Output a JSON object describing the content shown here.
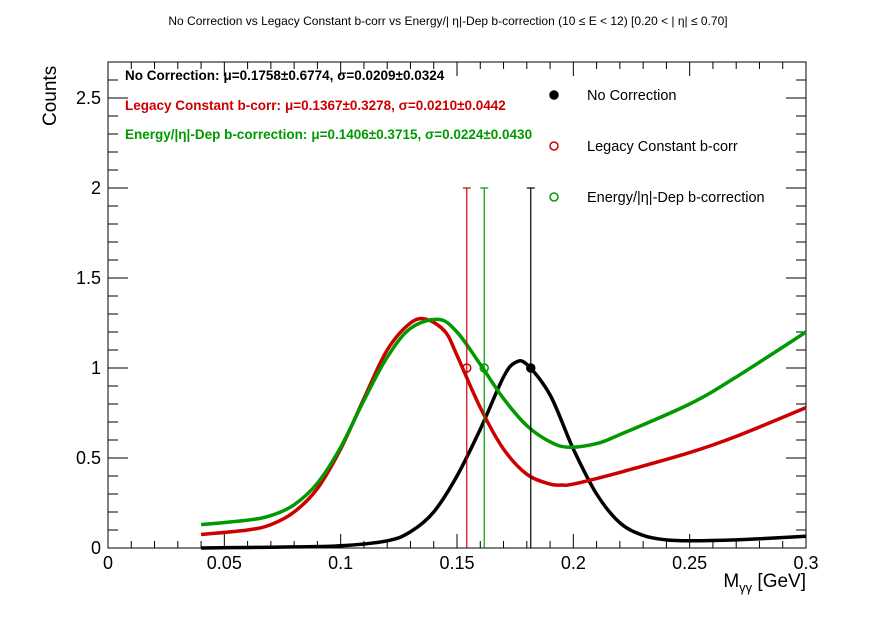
{
  "chart_data": {
    "type": "line",
    "title": "No Correction vs Legacy Constant b-corr vs Energy/|      η|-Dep b-correction   (10    ≤ E < 12)   [0.20 <  |   η| ≤ 0.70]",
    "xlabel": "M_γγ [GeV]",
    "xlabel_main": "M",
    "xlabel_sub": "γγ",
    "xlabel_unit": " [GeV]",
    "ylabel": "Counts",
    "xlim": [
      0,
      0.3
    ],
    "ylim": [
      0,
      2.7
    ],
    "x_ticks": [
      {
        "value": 0,
        "label": "0"
      },
      {
        "value": 0.05,
        "label": "0.05"
      },
      {
        "value": 0.1,
        "label": "0.1"
      },
      {
        "value": 0.15,
        "label": "0.15"
      },
      {
        "value": 0.2,
        "label": "0.2"
      },
      {
        "value": 0.25,
        "label": "0.25"
      },
      {
        "value": 0.3,
        "label": "0.3"
      }
    ],
    "y_ticks": [
      {
        "value": 0,
        "label": "0"
      },
      {
        "value": 0.5,
        "label": "0.5"
      },
      {
        "value": 1,
        "label": "1"
      },
      {
        "value": 1.5,
        "label": "1.5"
      },
      {
        "value": 2,
        "label": "2"
      },
      {
        "value": 2.5,
        "label": "2.5"
      }
    ],
    "grid": false,
    "legend_position": "top-right",
    "series": [
      {
        "name": "No Correction",
        "color": "#000000",
        "marker": "filled-circle",
        "point": {
          "x": 0.1817,
          "y": 1.0,
          "err_up": 1.0,
          "err_down": 1.0
        },
        "stats_label": "No Correction:",
        "stats_values": "μ=0.1758±0.6774, σ=0.0209±0.0324",
        "fit": {
          "x": [
            0.04,
            0.06,
            0.08,
            0.1,
            0.12,
            0.13,
            0.14,
            0.15,
            0.16,
            0.17,
            0.175,
            0.18,
            0.19,
            0.2,
            0.21,
            0.22,
            0.23,
            0.24,
            0.25,
            0.27,
            0.3
          ],
          "y": [
            0.0,
            0.003,
            0.006,
            0.012,
            0.04,
            0.09,
            0.2,
            0.4,
            0.66,
            0.95,
            1.03,
            1.02,
            0.85,
            0.55,
            0.3,
            0.14,
            0.07,
            0.045,
            0.04,
            0.045,
            0.065
          ]
        }
      },
      {
        "name": "Legacy Constant b-corr",
        "color": "#cc0000",
        "marker": "open-circle",
        "point": {
          "x": 0.1542,
          "y": 1.0,
          "err_up": 1.0,
          "err_down": 1.0
        },
        "stats_label": "Legacy Constant b-corr:",
        "stats_values": "μ=0.1367±0.3278, σ=0.0210±0.0442",
        "fit": {
          "x": [
            0.04,
            0.06,
            0.07,
            0.08,
            0.09,
            0.1,
            0.11,
            0.12,
            0.13,
            0.137,
            0.145,
            0.15,
            0.16,
            0.17,
            0.18,
            0.19,
            0.195,
            0.2,
            0.22,
            0.25,
            0.27,
            0.3
          ],
          "y": [
            0.075,
            0.1,
            0.13,
            0.2,
            0.33,
            0.55,
            0.83,
            1.1,
            1.25,
            1.27,
            1.2,
            1.07,
            0.78,
            0.55,
            0.41,
            0.355,
            0.35,
            0.355,
            0.42,
            0.53,
            0.62,
            0.78
          ]
        }
      },
      {
        "name": "Energy/|η|-Dep b-correction",
        "color": "#009900",
        "marker": "open-circle",
        "point": {
          "x": 0.1617,
          "y": 1.0,
          "err_up": 1.0,
          "err_down": 1.0
        },
        "stats_label": "Energy/|η|-Dep b-correction:",
        "stats_values": "μ=0.1406±0.3715, σ=0.0224±0.0430",
        "fit": {
          "x": [
            0.04,
            0.06,
            0.07,
            0.08,
            0.09,
            0.1,
            0.11,
            0.12,
            0.13,
            0.142,
            0.15,
            0.16,
            0.17,
            0.18,
            0.19,
            0.198,
            0.21,
            0.22,
            0.25,
            0.27,
            0.3
          ],
          "y": [
            0.13,
            0.155,
            0.18,
            0.24,
            0.36,
            0.56,
            0.82,
            1.06,
            1.22,
            1.27,
            1.2,
            1.02,
            0.83,
            0.68,
            0.59,
            0.56,
            0.58,
            0.63,
            0.8,
            0.95,
            1.2
          ]
        }
      }
    ]
  }
}
